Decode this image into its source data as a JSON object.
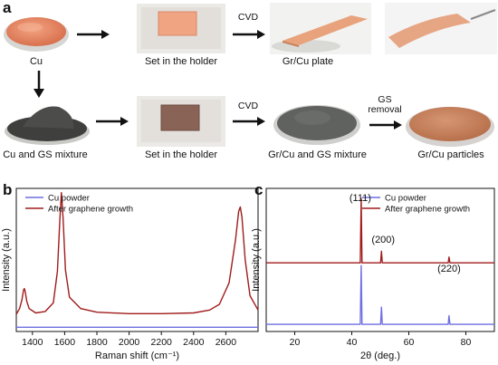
{
  "panel_labels": {
    "a": "a",
    "b": "b",
    "c": "c"
  },
  "panel_a": {
    "row1": {
      "captions": [
        "Cu",
        "Set in the holder",
        "Gr/Cu plate"
      ],
      "arrow_labels": [
        "CVD"
      ]
    },
    "row2": {
      "captions": [
        "Cu and GS mixture",
        "Set in the holder",
        "Gr/Cu and GS mixture",
        "Gr/Cu particles"
      ],
      "arrow_labels": [
        "CVD",
        "GS\nremoval"
      ]
    },
    "colors": {
      "cu_powder": "#e98c68",
      "gs_mixture": "#4a4a48",
      "gr_cu_gs": "#5f625f",
      "particles": "#c8805c",
      "plate": "#e8a27c",
      "holder": "#e7e4e0"
    }
  },
  "chart_data": [
    {
      "type": "line",
      "panel": "b",
      "xlabel": "Raman shift (cm⁻¹)",
      "ylabel": "Intensity (a.u.)",
      "xlim": [
        1300,
        2800
      ],
      "xticks": [
        1400,
        1600,
        1800,
        2000,
        2200,
        2400,
        2600
      ],
      "yticks_shown": false,
      "legend": "top-left",
      "series": [
        {
          "name": "Cu powder",
          "color": "#6f6fe0",
          "x": [
            1300,
            2800
          ],
          "y": [
            0.03,
            0.03
          ]
        },
        {
          "name": "After graphene growth",
          "color": "#a01c1c",
          "x": [
            1300,
            1320,
            1335,
            1345,
            1350,
            1355,
            1365,
            1380,
            1420,
            1480,
            1530,
            1555,
            1570,
            1580,
            1590,
            1605,
            1630,
            1700,
            1800,
            2000,
            2200,
            2400,
            2500,
            2560,
            2620,
            2660,
            2680,
            2690,
            2700,
            2720,
            2750,
            2800
          ],
          "y": [
            0.12,
            0.16,
            0.22,
            0.29,
            0.3,
            0.28,
            0.21,
            0.16,
            0.13,
            0.14,
            0.2,
            0.42,
            0.78,
            0.97,
            0.8,
            0.43,
            0.24,
            0.16,
            0.135,
            0.125,
            0.125,
            0.13,
            0.15,
            0.19,
            0.34,
            0.64,
            0.84,
            0.87,
            0.8,
            0.5,
            0.25,
            0.15
          ]
        }
      ]
    },
    {
      "type": "line",
      "panel": "c",
      "xlabel": "2θ (deg.)",
      "ylabel": "Intensity (a.u.)",
      "xlim": [
        10,
        90
      ],
      "xticks": [
        20,
        40,
        60,
        80
      ],
      "yticks_shown": false,
      "legend": "top-right",
      "peak_labels": [
        {
          "text": "(111)",
          "x": 43.3
        },
        {
          "text": "(200)",
          "x": 50.4
        },
        {
          "text": "(220)",
          "x": 74.1
        }
      ],
      "series": [
        {
          "name": "Cu powder",
          "color": "#6f6fe0",
          "x": [
            10,
            43.0,
            43.3,
            43.6,
            50.1,
            50.4,
            50.7,
            73.8,
            74.1,
            74.4,
            90
          ],
          "y": [
            0.05,
            0.05,
            0.46,
            0.05,
            0.05,
            0.17,
            0.05,
            0.05,
            0.11,
            0.05,
            0.05
          ]
        },
        {
          "name": "After graphene growth",
          "color": "#a01c1c",
          "x": [
            10,
            43.0,
            43.3,
            43.6,
            50.1,
            50.4,
            50.7,
            73.8,
            74.1,
            74.4,
            90
          ],
          "y": [
            0.48,
            0.48,
            0.93,
            0.48,
            0.48,
            0.56,
            0.48,
            0.48,
            0.52,
            0.48,
            0.48
          ]
        }
      ]
    }
  ]
}
